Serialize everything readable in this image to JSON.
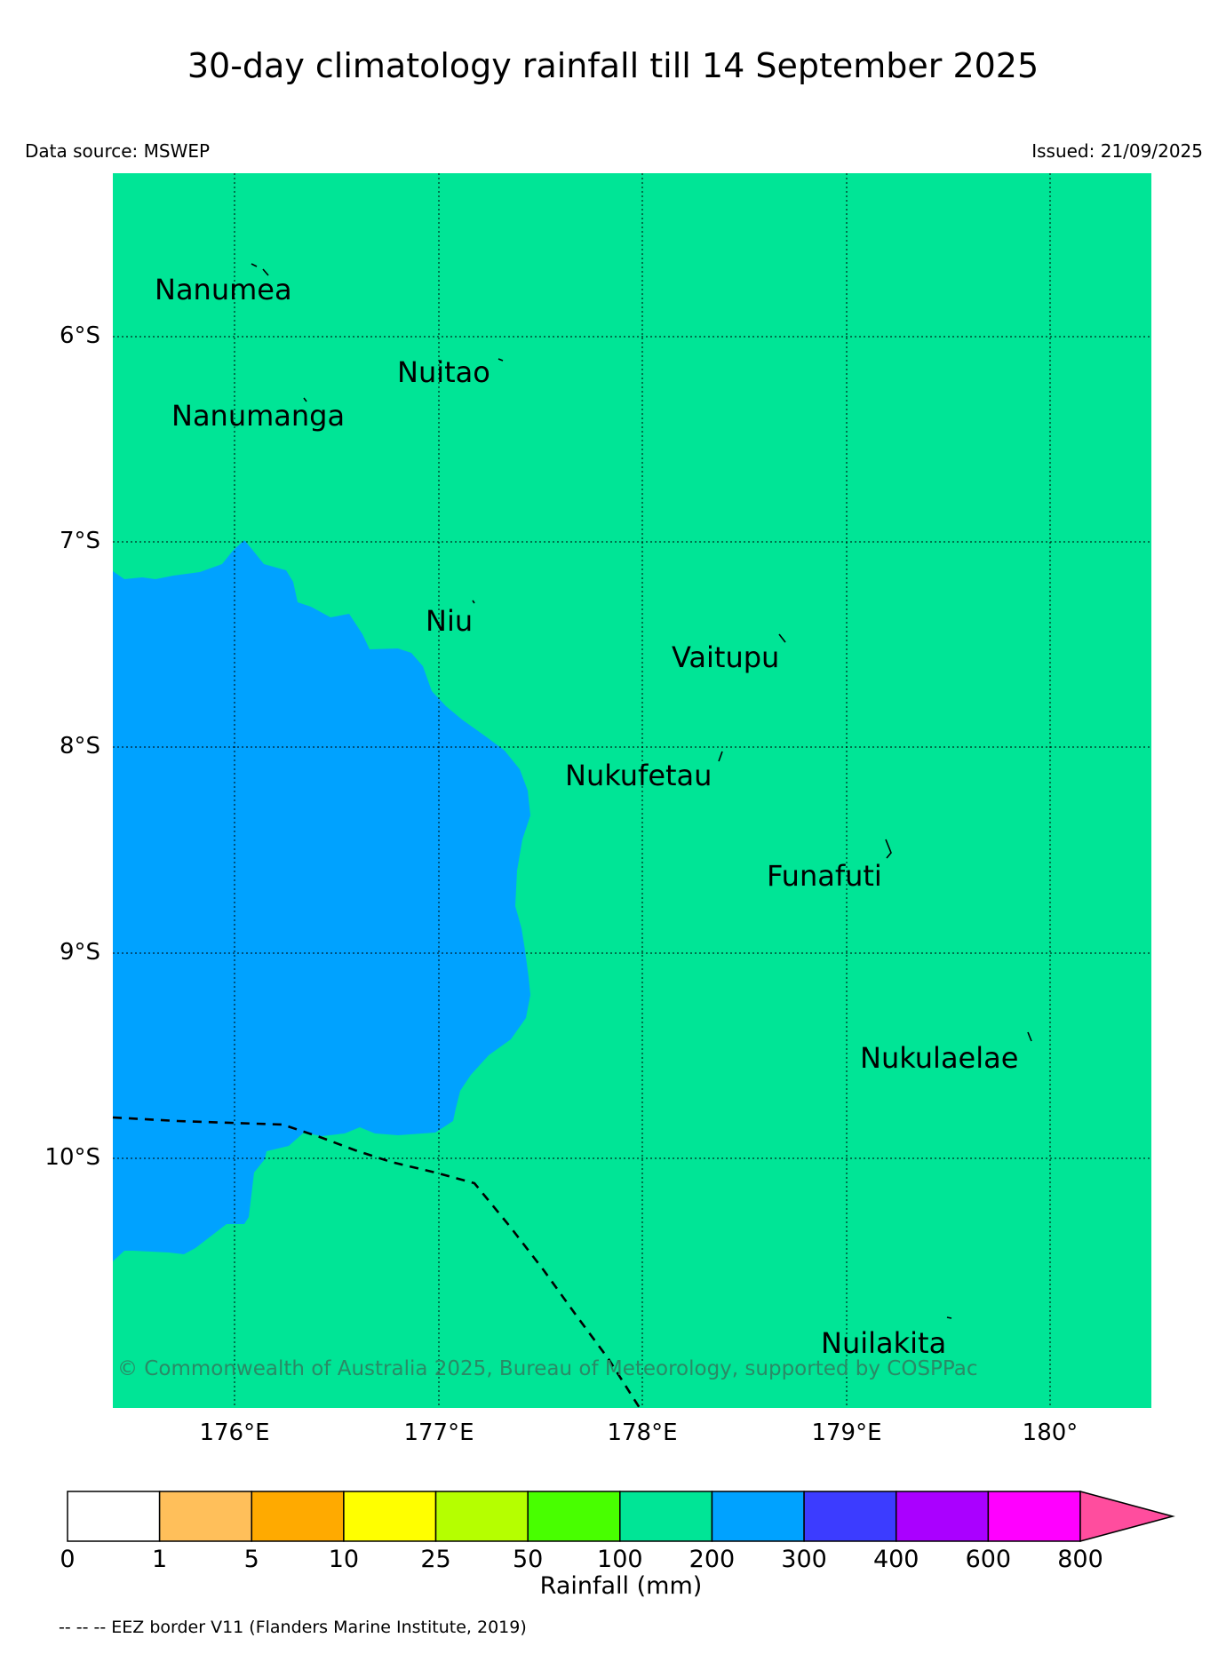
{
  "title": "30-day climatology rainfall till 14 September 2025",
  "data_source": "Data source: MSWEP",
  "issued": "Issued: 21/09/2025",
  "colors": {
    "band_100_200": "#00e596",
    "band_200_300": "#00a2ff",
    "grid_line": "#000000",
    "eez_line": "#000000",
    "copyright_text": "#2a8a66"
  },
  "map": {
    "lat_labels": [
      "6°S",
      "7°S",
      "8°S",
      "9°S",
      "10°S"
    ],
    "lon_labels": [
      "176°E",
      "177°E",
      "178°E",
      "179°E",
      "180°"
    ],
    "islands": [
      {
        "name": "Nanumea"
      },
      {
        "name": "Nuitao"
      },
      {
        "name": "Nanumanga"
      },
      {
        "name": "Niu"
      },
      {
        "name": "Vaitupu"
      },
      {
        "name": "Nukufetau"
      },
      {
        "name": "Funafuti"
      },
      {
        "name": "Nukulaelae"
      },
      {
        "name": "Nuilakita"
      }
    ],
    "copyright": "© Commonwealth of Australia 2025, Bureau of Meteorology, supported by COSPPac"
  },
  "colorbar": {
    "title": "Rainfall (mm)",
    "ticks": [
      "0",
      "1",
      "5",
      "10",
      "25",
      "50",
      "100",
      "200",
      "300",
      "400",
      "600",
      "800"
    ],
    "colors": [
      "#ffffff",
      "#ffbf5a",
      "#ffaa00",
      "#ffff00",
      "#b5ff00",
      "#48ff00",
      "#00e596",
      "#00a2ff",
      "#3c3cff",
      "#aa00ff",
      "#ff00ff"
    ],
    "extend_color": "#ff4d9e"
  },
  "eez_note": "-- -- -- EEZ border V11 (Flanders Marine Institute, 2019)"
}
